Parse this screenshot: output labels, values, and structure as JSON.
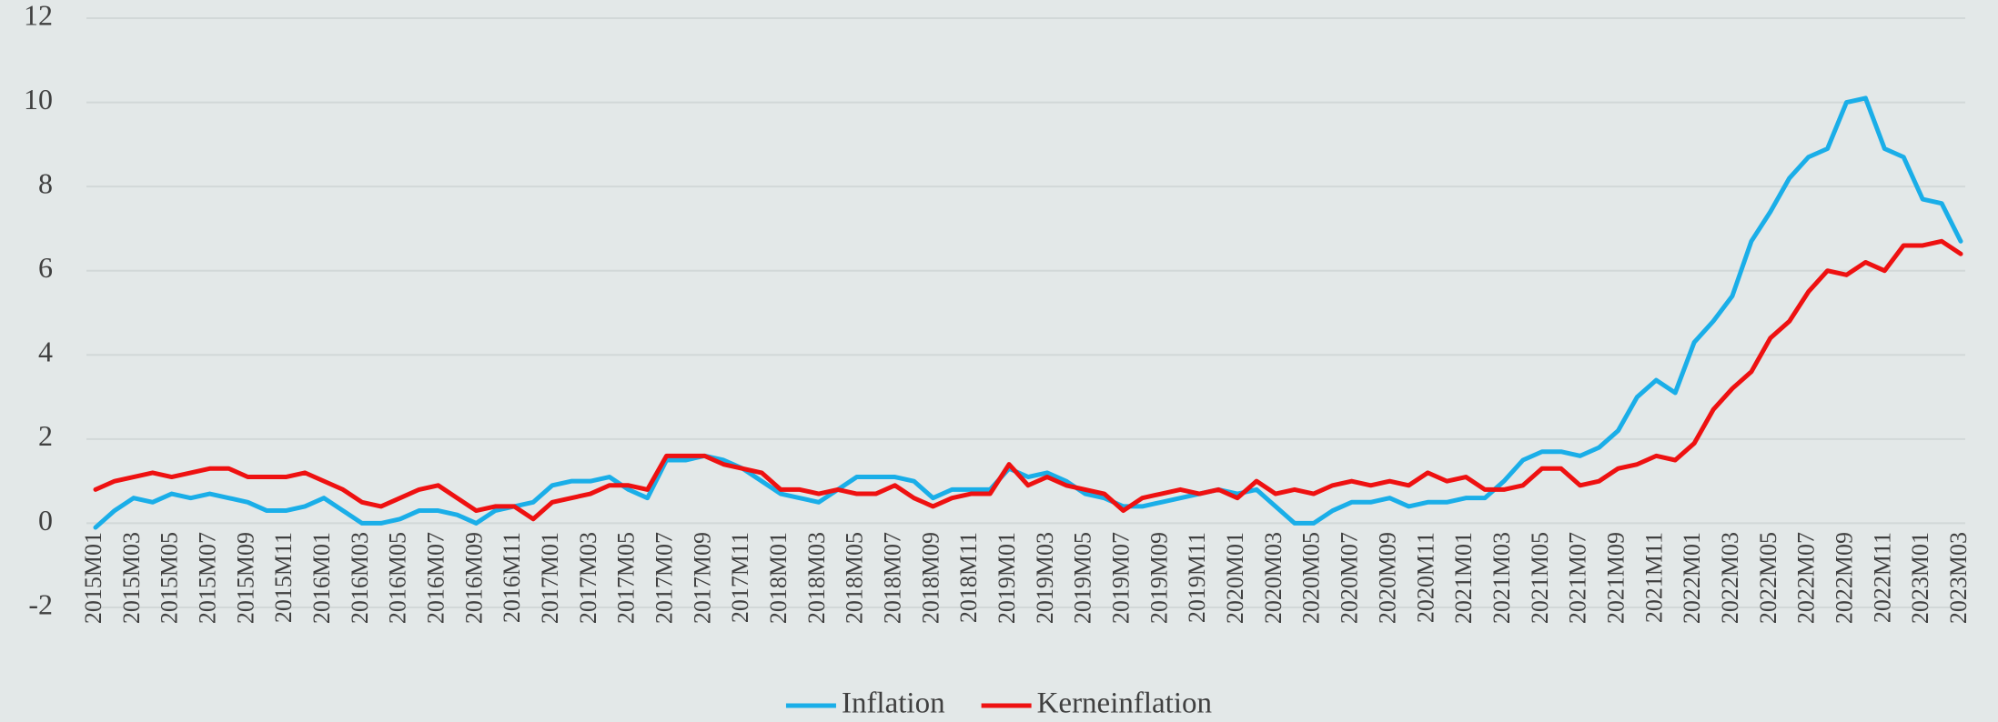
{
  "chart_data": {
    "type": "line",
    "categories": [
      "2015M01",
      null,
      "2015M03",
      null,
      "2015M05",
      null,
      "2015M07",
      null,
      "2015M09",
      null,
      "2015M11",
      null,
      "2016M01",
      null,
      "2016M03",
      null,
      "2016M05",
      null,
      "2016M07",
      null,
      "2016M09",
      null,
      "2016M11",
      null,
      "2017M01",
      null,
      "2017M03",
      null,
      "2017M05",
      null,
      "2017M07",
      null,
      "2017M09",
      null,
      "2017M11",
      null,
      "2018M01",
      null,
      "2018M03",
      null,
      "2018M05",
      null,
      "2018M07",
      null,
      "2018M09",
      null,
      "2018M11",
      null,
      "2019M01",
      null,
      "2019M03",
      null,
      "2019M05",
      null,
      "2019M07",
      null,
      "2019M09",
      null,
      "2019M11",
      null,
      "2020M01",
      null,
      "2020M03",
      null,
      "2020M05",
      null,
      "2020M07",
      null,
      "2020M09",
      null,
      "2020M11",
      null,
      "2021M01",
      null,
      "2021M03",
      null,
      "2021M05",
      null,
      "2021M07",
      null,
      "2021M09",
      null,
      "2021M11",
      null,
      "2022M01",
      null,
      "2022M03",
      null,
      "2022M05",
      null,
      "2022M07",
      null,
      "2022M09",
      null,
      "2022M11",
      null,
      "2023M01",
      null,
      "2023M03"
    ],
    "series": [
      {
        "name": "Inflation",
        "color": "#1aaee8",
        "values": [
          -0.1,
          0.3,
          0.6,
          0.5,
          0.7,
          0.6,
          0.7,
          0.6,
          0.5,
          0.3,
          0.3,
          0.4,
          0.6,
          0.3,
          0.0,
          0.0,
          0.1,
          0.3,
          0.3,
          0.2,
          0.0,
          0.3,
          0.4,
          0.5,
          0.9,
          1.0,
          1.0,
          1.1,
          0.8,
          0.6,
          1.5,
          1.5,
          1.6,
          1.5,
          1.3,
          1.0,
          0.7,
          0.6,
          0.5,
          0.8,
          1.1,
          1.1,
          1.1,
          1.0,
          0.6,
          0.8,
          0.8,
          0.8,
          1.3,
          1.1,
          1.2,
          1.0,
          0.7,
          0.6,
          0.4,
          0.4,
          0.5,
          0.6,
          0.7,
          0.8,
          0.7,
          0.8,
          0.4,
          0.0,
          0.0,
          0.3,
          0.5,
          0.5,
          0.6,
          0.4,
          0.5,
          0.5,
          0.6,
          0.6,
          1.0,
          1.5,
          1.7,
          1.7,
          1.6,
          1.8,
          2.2,
          3.0,
          3.4,
          3.1,
          4.3,
          4.8,
          5.4,
          6.7,
          7.4,
          8.2,
          8.7,
          8.9,
          10.0,
          10.1,
          8.9,
          8.7,
          7.7,
          7.6,
          6.7
        ]
      },
      {
        "name": "Kerneinflation",
        "color": "#ee1111",
        "values": [
          0.8,
          1.0,
          1.1,
          1.2,
          1.1,
          1.2,
          1.3,
          1.3,
          1.1,
          1.1,
          1.1,
          1.2,
          1.0,
          0.8,
          0.5,
          0.4,
          0.6,
          0.8,
          0.9,
          0.6,
          0.3,
          0.4,
          0.4,
          0.1,
          0.5,
          0.6,
          0.7,
          0.9,
          0.9,
          0.8,
          1.6,
          1.6,
          1.6,
          1.4,
          1.3,
          1.2,
          0.8,
          0.8,
          0.7,
          0.8,
          0.7,
          0.7,
          0.9,
          0.6,
          0.4,
          0.6,
          0.7,
          0.7,
          1.4,
          0.9,
          1.1,
          0.9,
          0.8,
          0.7,
          0.3,
          0.6,
          0.7,
          0.8,
          0.7,
          0.8,
          0.6,
          1.0,
          0.7,
          0.8,
          0.7,
          0.9,
          1.0,
          0.9,
          1.0,
          0.9,
          1.2,
          1.0,
          1.1,
          0.8,
          0.8,
          0.9,
          1.3,
          1.3,
          0.9,
          1.0,
          1.3,
          1.4,
          1.6,
          1.5,
          1.9,
          2.7,
          3.2,
          3.6,
          4.4,
          4.8,
          5.5,
          6.0,
          5.9,
          6.2,
          6.0,
          6.6,
          6.6,
          6.7,
          6.4
        ]
      }
    ],
    "ylim": [
      -2,
      12
    ],
    "yticks": [
      -2,
      0,
      2,
      4,
      6,
      8,
      10,
      12
    ],
    "grid": true,
    "legend": "bottom"
  }
}
